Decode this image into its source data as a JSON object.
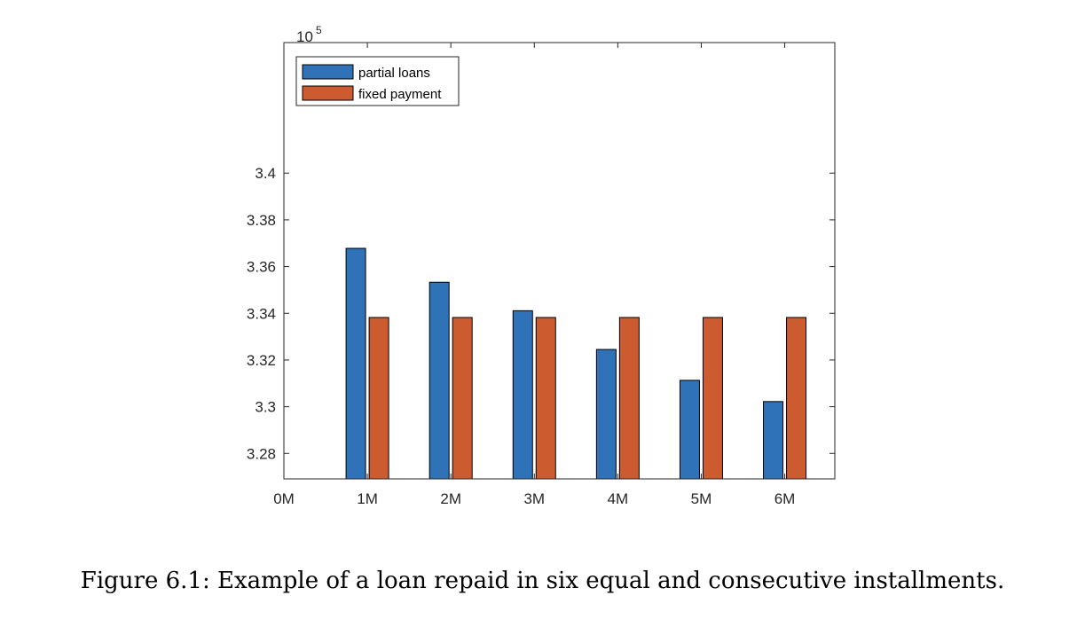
{
  "caption": "Figure 6.1: Example of a loan repaid in six equal and consecutive installments.",
  "chart_data": {
    "type": "bar",
    "exponent_base": "10",
    "exponent_power": "5",
    "categories": [
      "0M",
      "1M",
      "2M",
      "3M",
      "4M",
      "5M",
      "6M"
    ],
    "series": [
      {
        "name": "partial loans",
        "color": "#3072B8",
        "values": [
          null,
          3.3678,
          3.3533,
          3.3411,
          3.3245,
          3.3113,
          3.3022
        ]
      },
      {
        "name": "fixed payment",
        "color": "#CC5B30",
        "values": [
          null,
          3.3382,
          3.3382,
          3.3382,
          3.3382,
          3.3382,
          3.3382
        ]
      }
    ],
    "ylim": [
      3.2691,
      3.4559
    ],
    "yticks": [
      3.28,
      3.3,
      3.32,
      3.34,
      3.36,
      3.38,
      3.4
    ],
    "ytick_labels": [
      "3.28",
      "3.3",
      "3.32",
      "3.34",
      "3.36",
      "3.38",
      "3.4"
    ],
    "legend_position": "top-left",
    "grid": false
  }
}
